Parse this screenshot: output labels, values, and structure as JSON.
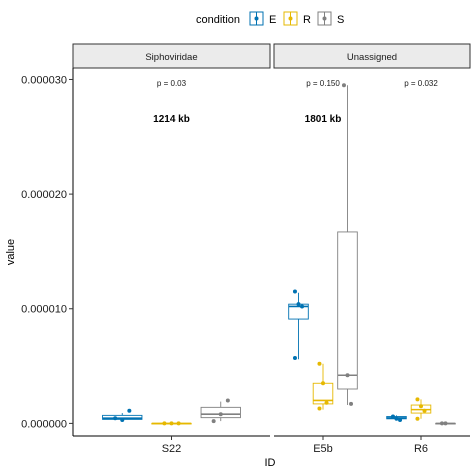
{
  "legend": {
    "title": "condition",
    "items": [
      {
        "key": "E",
        "label": "E",
        "color": "#0072B2"
      },
      {
        "key": "R",
        "label": "R",
        "color": "#E6B800"
      },
      {
        "key": "S",
        "label": "S",
        "color": "#808080"
      }
    ]
  },
  "chart_data": {
    "type": "box",
    "xlabel": "ID",
    "ylabel": "value",
    "ylim": [
      -1.1e-06,
      3.1e-05
    ],
    "yticks": [
      0,
      1e-05,
      2e-05,
      3e-05
    ],
    "ytick_labels": [
      "0.000000",
      "0.000010",
      "0.000020",
      "0.000030"
    ],
    "legend_position": "top",
    "grid": false,
    "facets": [
      {
        "name": "Siphoviridae",
        "categories": [
          "S22"
        ],
        "annotations": [
          {
            "category": "S22",
            "pvalue_label": "p = 0.03",
            "size_label": "1214 kb"
          }
        ],
        "boxes": [
          {
            "category": "S22",
            "condition": "E",
            "q1": 3.5e-07,
            "median": 4.5e-07,
            "q3": 7e-07,
            "whisker_low": 3e-07,
            "whisker_high": 9e-07,
            "points": [
              4.5e-07,
              3e-07,
              1.1e-06
            ]
          },
          {
            "category": "S22",
            "condition": "R",
            "q1": 0.0,
            "median": 0.0,
            "q3": 0.0,
            "whisker_low": 0.0,
            "whisker_high": 0.0,
            "points": [
              0.0,
              0.0,
              0.0
            ]
          },
          {
            "category": "S22",
            "condition": "S",
            "q1": 5e-07,
            "median": 8e-07,
            "q3": 1.4e-06,
            "whisker_low": 2e-07,
            "whisker_high": 1.9e-06,
            "points": [
              2e-07,
              8e-07,
              2e-06
            ]
          }
        ]
      },
      {
        "name": "Unassigned",
        "categories": [
          "E5b",
          "R6"
        ],
        "annotations": [
          {
            "category": "E5b",
            "pvalue_label": "p = 0.150",
            "size_label": "1801 kb"
          },
          {
            "category": "R6",
            "pvalue_label": "p = 0.032",
            "size_label": ""
          }
        ],
        "boxes": [
          {
            "category": "E5b",
            "condition": "E",
            "q1": 9.1e-06,
            "median": 1.02e-05,
            "q3": 1.04e-05,
            "whisker_low": 5.6e-06,
            "whisker_high": 1.14e-05,
            "points": [
              1.15e-05,
              1.04e-05,
              1.02e-05,
              5.7e-06
            ]
          },
          {
            "category": "E5b",
            "condition": "R",
            "q1": 1.7e-06,
            "median": 2e-06,
            "q3": 3.5e-06,
            "whisker_low": 1.2e-06,
            "whisker_high": 5.2e-06,
            "points": [
              5.2e-06,
              3.5e-06,
              1.8e-06,
              1.3e-06
            ]
          },
          {
            "category": "E5b",
            "condition": "S",
            "q1": 3e-06,
            "median": 4.2e-06,
            "q3": 1.67e-05,
            "whisker_low": 1.6e-06,
            "whisker_high": 2.95e-05,
            "points": [
              2.95e-05,
              4.2e-06,
              1.7e-06
            ]
          },
          {
            "category": "R6",
            "condition": "E",
            "q1": 4e-07,
            "median": 4.8e-07,
            "q3": 6e-07,
            "whisker_low": 3e-07,
            "whisker_high": 7e-07,
            "points": [
              6e-07,
              4e-07,
              3e-07
            ]
          },
          {
            "category": "R6",
            "condition": "R",
            "q1": 9e-07,
            "median": 1.2e-06,
            "q3": 1.6e-06,
            "whisker_low": 4e-07,
            "whisker_high": 2.1e-06,
            "points": [
              2.1e-06,
              1.5e-06,
              1.1e-06,
              4e-07
            ]
          },
          {
            "category": "R6",
            "condition": "S",
            "q1": 0.0,
            "median": 0.0,
            "q3": 0.0,
            "whisker_low": 0.0,
            "whisker_high": 0.0,
            "points": [
              0.0,
              0.0
            ]
          }
        ]
      }
    ]
  }
}
